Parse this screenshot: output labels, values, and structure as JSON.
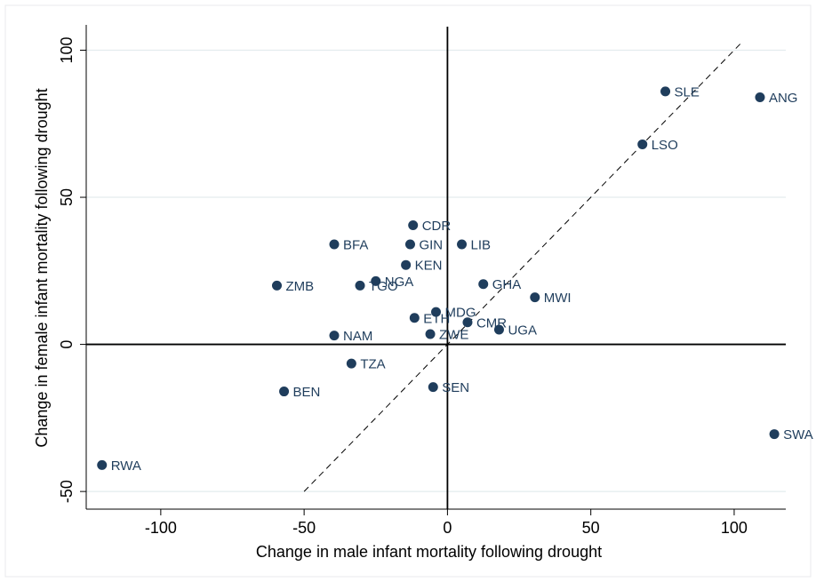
{
  "chart_data": {
    "type": "scatter",
    "xlabel": "Change in male infant mortality following drought",
    "ylabel": "Change in female infant mortality following drought",
    "xlim": [
      -126,
      118
    ],
    "ylim": [
      -56,
      108
    ],
    "xticks": [
      -100,
      -50,
      0,
      50,
      100
    ],
    "yticks": [
      -50,
      0,
      50,
      100
    ],
    "xtick_labels": [
      "-100",
      "-50",
      "0",
      "50",
      "100"
    ],
    "ytick_labels": [
      "-50",
      "0",
      "50",
      "100"
    ],
    "grid": "horizontal",
    "reference_lines": [
      {
        "kind": "vertical",
        "x": 0,
        "style": "solid"
      },
      {
        "kind": "horizontal",
        "y": 0,
        "style": "solid"
      },
      {
        "kind": "diagonal",
        "from": [
          -50,
          -50
        ],
        "to": [
          103,
          103
        ],
        "style": "dashed"
      }
    ],
    "point_color": "#1f3d5c",
    "points": [
      {
        "label": "SLE",
        "x": 76,
        "y": 86
      },
      {
        "label": "ANG",
        "x": 109,
        "y": 84
      },
      {
        "label": "LSO",
        "x": 68,
        "y": 68
      },
      {
        "label": "CDR",
        "x": -12,
        "y": 40.5
      },
      {
        "label": "BFA",
        "x": -39.5,
        "y": 34
      },
      {
        "label": "GIN",
        "x": -13,
        "y": 34
      },
      {
        "label": "LIB",
        "x": 5,
        "y": 34
      },
      {
        "label": "KEN",
        "x": -14.5,
        "y": 27
      },
      {
        "label": "NGA",
        "x": -25,
        "y": 21.5
      },
      {
        "label": "ZMB",
        "x": -59.5,
        "y": 20
      },
      {
        "label": "TGO",
        "x": -30.5,
        "y": 20
      },
      {
        "label": "GHA",
        "x": 12.5,
        "y": 20.5
      },
      {
        "label": "MWI",
        "x": 30.5,
        "y": 16
      },
      {
        "label": "MDG",
        "x": -4,
        "y": 11
      },
      {
        "label": "ETH",
        "x": -11.5,
        "y": 9
      },
      {
        "label": "CMR",
        "x": 7,
        "y": 7.5
      },
      {
        "label": "UGA",
        "x": 18,
        "y": 5
      },
      {
        "label": "NAM",
        "x": -39.5,
        "y": 3
      },
      {
        "label": "ZWE",
        "x": -6,
        "y": 3.5
      },
      {
        "label": "TZA",
        "x": -33.5,
        "y": -6.5
      },
      {
        "label": "SEN",
        "x": -5,
        "y": -14.5
      },
      {
        "label": "BEN",
        "x": -57,
        "y": -16
      },
      {
        "label": "SWA",
        "x": 114,
        "y": -30.5
      },
      {
        "label": "RWA",
        "x": -120.5,
        "y": -41
      }
    ]
  }
}
